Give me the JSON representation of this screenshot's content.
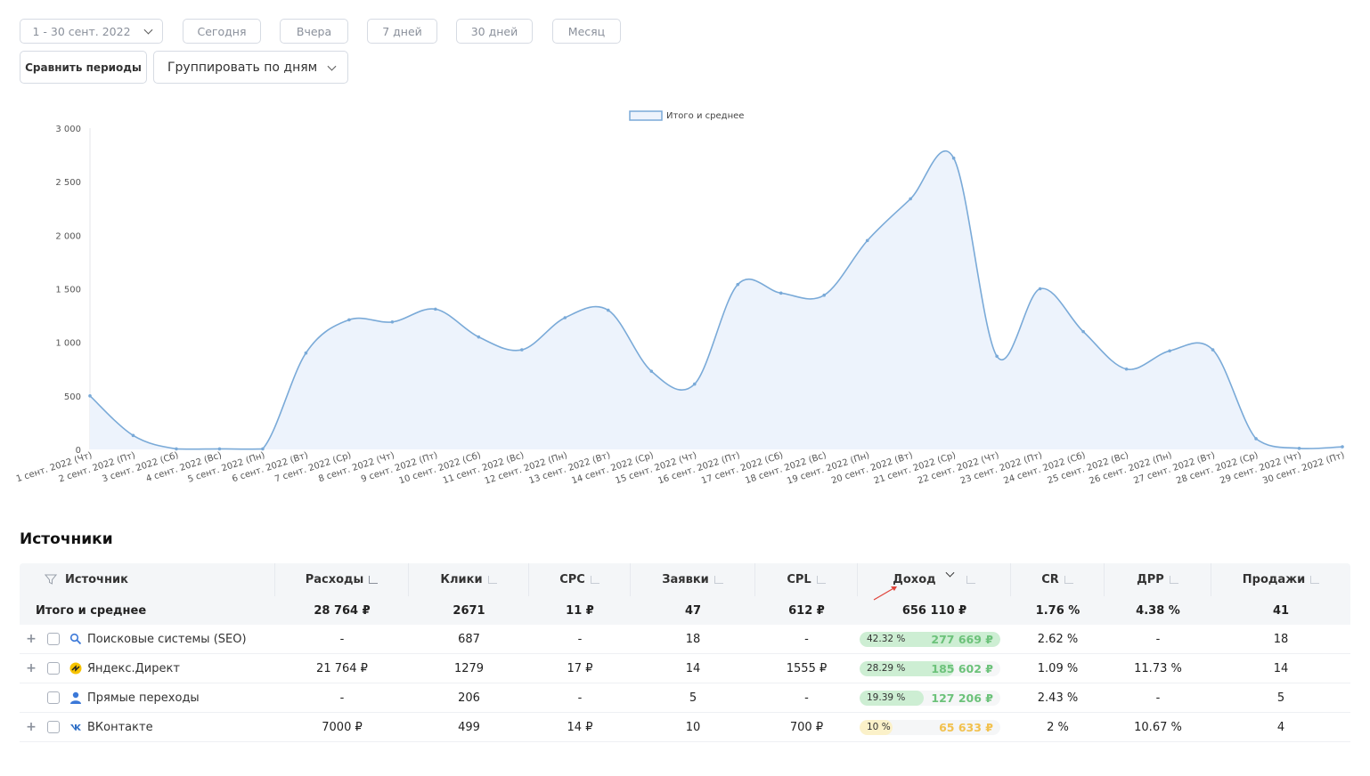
{
  "toolbar": {
    "date_range": "1 - 30 сент. 2022",
    "today": "Сегодня",
    "yesterday": "Вчера",
    "days7": "7 дней",
    "days30": "30 дней",
    "month": "Месяц",
    "compare": "Сравнить периоды",
    "group_by": "Группировать по дням"
  },
  "chart_data": {
    "type": "area",
    "legend": "Итого и среднее",
    "ylim": [
      0,
      3000
    ],
    "yticks": [
      "0",
      "500",
      "1 000",
      "1 500",
      "2 000",
      "2 500",
      "3 000"
    ],
    "categories": [
      "1 сент. 2022 (Чт)",
      "2 сент. 2022 (Пт)",
      "3 сент. 2022 (Сб)",
      "4 сент. 2022 (Вс)",
      "5 сент. 2022 (Пн)",
      "6 сент. 2022 (Вт)",
      "7 сент. 2022 (Ср)",
      "8 сент. 2022 (Чт)",
      "9 сент. 2022 (Пт)",
      "10 сент. 2022 (Сб)",
      "11 сент. 2022 (Вс)",
      "12 сент. 2022 (Пн)",
      "13 сент. 2022 (Вт)",
      "14 сент. 2022 (Ср)",
      "15 сент. 2022 (Чт)",
      "16 сент. 2022 (Пт)",
      "17 сент. 2022 (Сб)",
      "18 сент. 2022 (Вс)",
      "19 сент. 2022 (Пн)",
      "20 сент. 2022 (Вт)",
      "21 сент. 2022 (Ср)",
      "22 сент. 2022 (Чт)",
      "23 сент. 2022 (Пт)",
      "24 сент. 2022 (Сб)",
      "25 сент. 2022 (Вс)",
      "26 сент. 2022 (Пн)",
      "27 сент. 2022 (Вт)",
      "28 сент. 2022 (Ср)",
      "29 сент. 2022 (Чт)",
      "30 сент. 2022 (Пт)"
    ],
    "values": [
      500,
      130,
      5,
      5,
      5,
      900,
      1210,
      1190,
      1310,
      1050,
      930,
      1230,
      1300,
      730,
      610,
      1540,
      1460,
      1440,
      1950,
      2340,
      2720,
      870,
      1500,
      1100,
      750,
      920,
      930,
      100,
      10,
      25
    ],
    "color": "#7aaad8",
    "fill": "#edf3fc"
  },
  "section_title": "Источники",
  "table": {
    "headers": [
      "Источник",
      "Расходы",
      "Клики",
      "CPC",
      "Заявки",
      "CPL",
      "Доход",
      "CR",
      "ДРР",
      "Продажи"
    ],
    "total": {
      "label": "Итого и среднее",
      "cells": [
        "28 764 ₽",
        "2671",
        "11 ₽",
        "47",
        "612 ₽",
        "656 110 ₽",
        "1.76 %",
        "4.38 %",
        "41"
      ]
    },
    "rows": [
      {
        "name": "Поисковые системы (SEO)",
        "icon": "search-icon",
        "cells": [
          "-",
          "687",
          "-",
          "18",
          "-"
        ],
        "pct": "42.32 %",
        "share": 0.4232,
        "income": "277 669 ₽",
        "bar_color": "#cdeed3",
        "val_color": "#6cc27a",
        "tail": [
          "2.62 %",
          "-",
          "18"
        ],
        "expandable": true
      },
      {
        "name": "Яндекс.Директ",
        "icon": "yandex-direct-icon",
        "cells": [
          "21 764 ₽",
          "1279",
          "17 ₽",
          "14",
          "1555 ₽"
        ],
        "pct": "28.29 %",
        "share": 0.2829,
        "income": "185 602 ₽",
        "bar_color": "#cdeed3",
        "val_color": "#6cc27a",
        "tail": [
          "1.09 %",
          "11.73 %",
          "14"
        ],
        "expandable": true
      },
      {
        "name": "Прямые переходы",
        "icon": "user-icon",
        "cells": [
          "-",
          "206",
          "-",
          "5",
          "-"
        ],
        "pct": "19.39 %",
        "share": 0.1939,
        "income": "127 206 ₽",
        "bar_color": "#cdeed3",
        "val_color": "#6cc27a",
        "tail": [
          "2.43 %",
          "-",
          "5"
        ],
        "expandable": false
      },
      {
        "name": "ВКонтакте",
        "icon": "vk-icon",
        "cells": [
          "7000 ₽",
          "499",
          "14 ₽",
          "10",
          "700 ₽"
        ],
        "pct": "10 %",
        "share": 0.1,
        "income": "65 633 ₽",
        "bar_color": "#fbf1c9",
        "val_color": "#f2c14e",
        "tail": [
          "2 %",
          "10.67 %",
          "4"
        ],
        "expandable": true
      }
    ]
  }
}
